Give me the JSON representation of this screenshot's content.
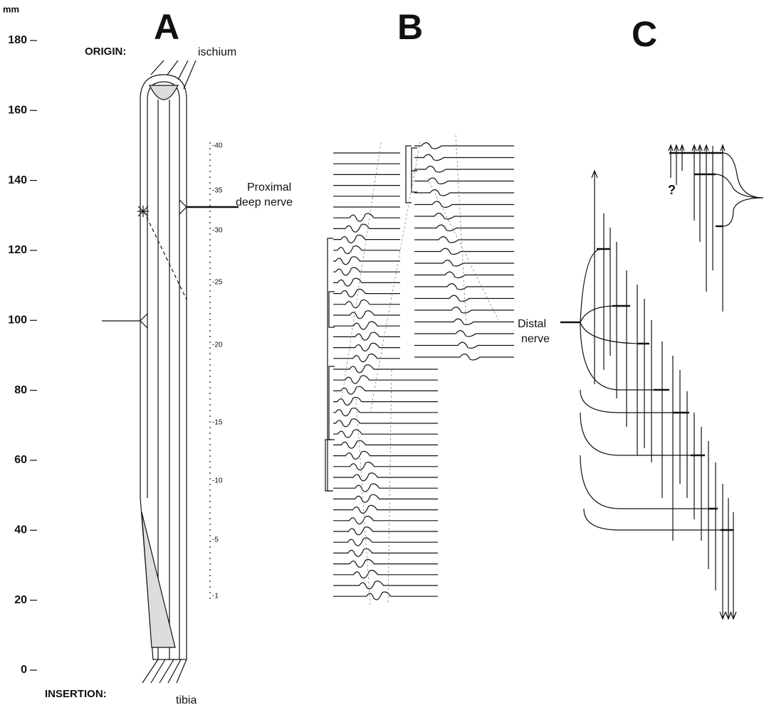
{
  "axis": {
    "unit": "mm",
    "ticks": [
      180,
      160,
      140,
      120,
      100,
      80,
      60,
      40,
      20,
      0
    ]
  },
  "panels": [
    "A",
    "B",
    "C"
  ],
  "panel_a": {
    "origin_label": "ORIGIN:",
    "origin": "ischium",
    "insertion_label": "INSERTION:",
    "insertion": "tibia",
    "nerve_line1": "Proximal",
    "nerve_line2": "deep nerve",
    "segments": [
      "-40",
      "-35",
      "-30",
      "-25",
      "-20",
      "-15",
      "-10",
      "-5",
      "-1"
    ]
  },
  "panel_c": {
    "nerve_line1": "Distal",
    "nerve_line2": "nerve",
    "question": "?"
  }
}
